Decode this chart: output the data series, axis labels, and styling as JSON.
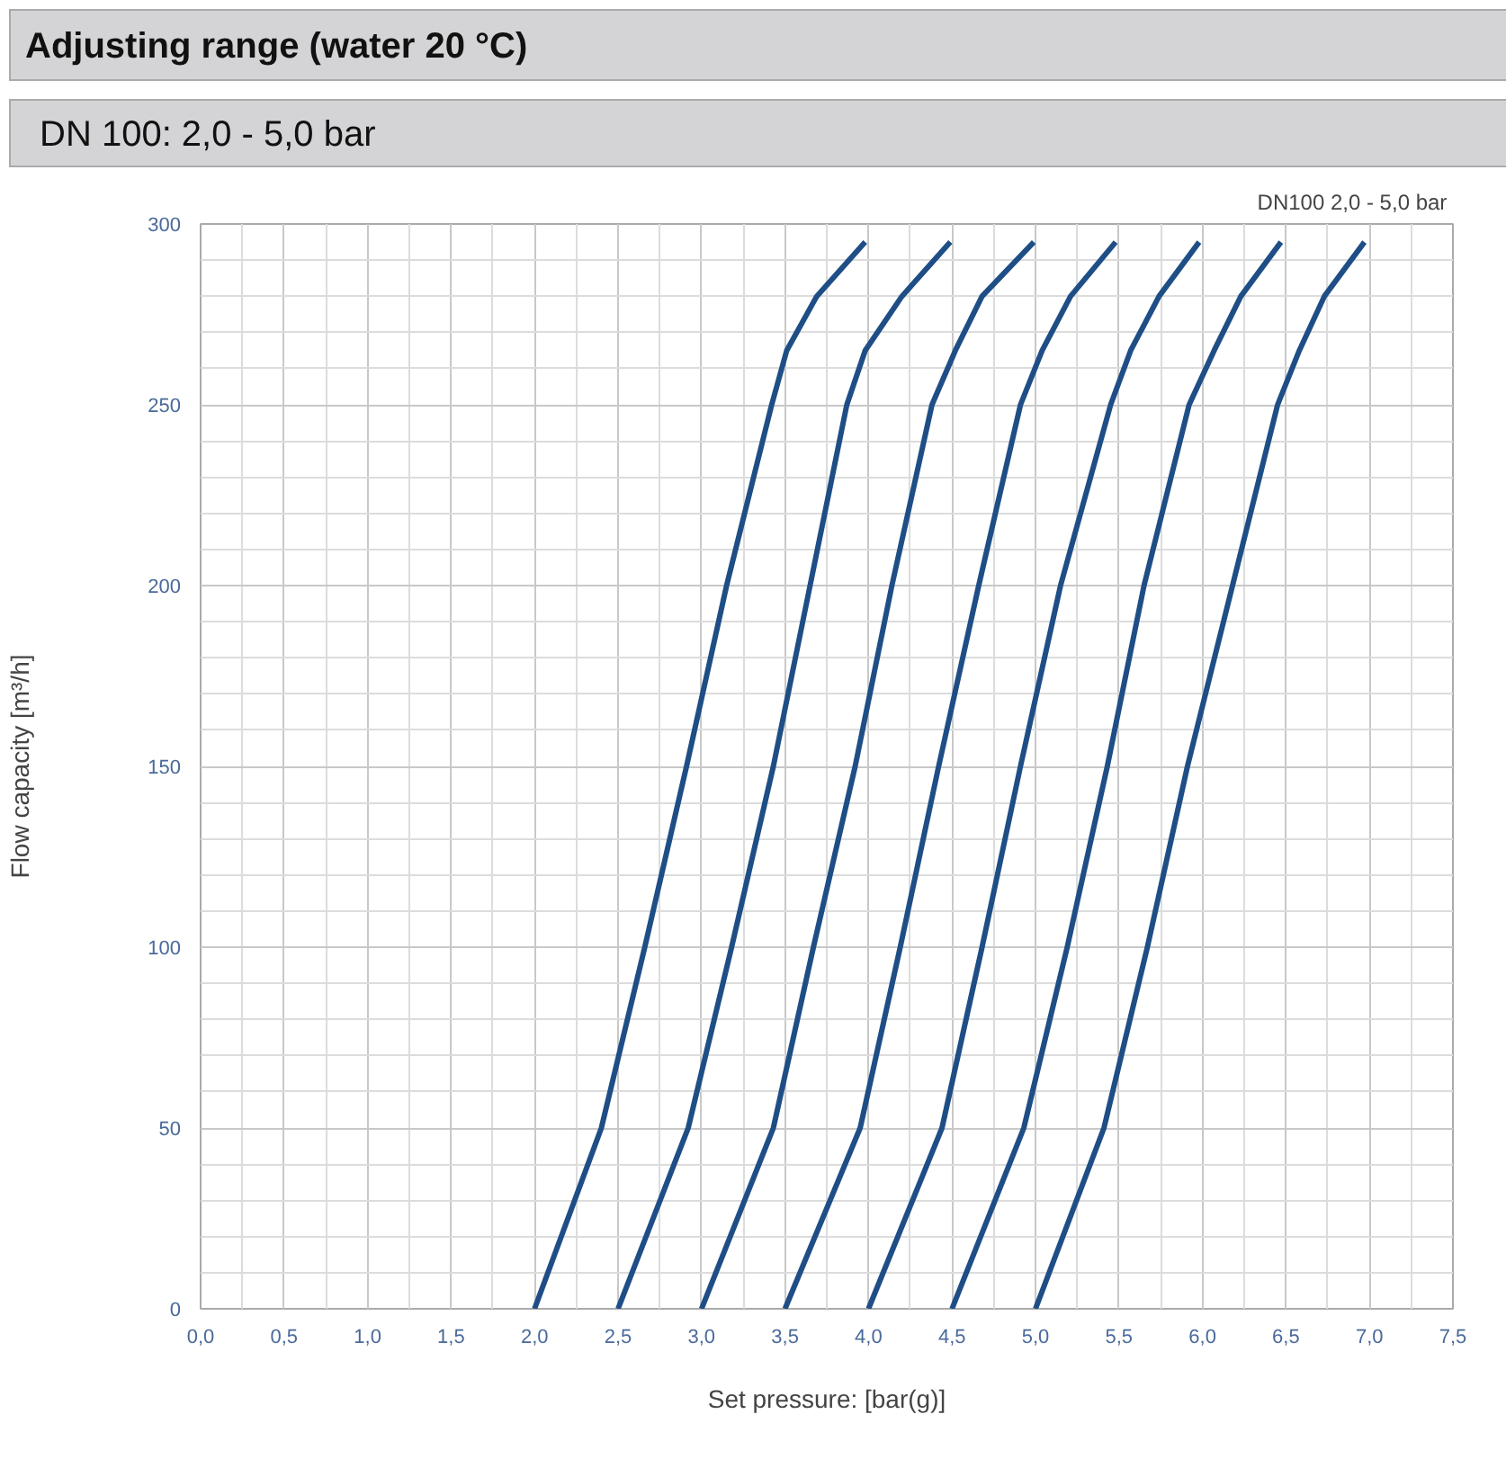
{
  "chart_data": {
    "type": "line",
    "title": "Adjusting range (water 20 °C)",
    "subtitle": "DN 100: 2,0 - 5,0 bar",
    "annotations": [
      "DN100  2,0 - 5,0 bar"
    ],
    "xlabel": "Set pressure: [bar(g)]",
    "ylabel": "Flow capacity [m³/h]",
    "xlim": [
      0,
      7.5
    ],
    "ylim": [
      0,
      300
    ],
    "xticks": [
      {
        "value": 0,
        "label": "0,0"
      },
      {
        "value": 0.5,
        "label": "0,5"
      },
      {
        "value": 1,
        "label": "1,0"
      },
      {
        "value": 1.5,
        "label": "1,5"
      },
      {
        "value": 2,
        "label": "2,0"
      },
      {
        "value": 2.5,
        "label": "2,5"
      },
      {
        "value": 3,
        "label": "3,0"
      },
      {
        "value": 3.5,
        "label": "3,5"
      },
      {
        "value": 4,
        "label": "4,0"
      },
      {
        "value": 4.5,
        "label": "4,5"
      },
      {
        "value": 5,
        "label": "5,0"
      },
      {
        "value": 5.5,
        "label": "5,5"
      },
      {
        "value": 6,
        "label": "6,0"
      },
      {
        "value": 6.5,
        "label": "6,5"
      },
      {
        "value": 7,
        "label": "7,0"
      },
      {
        "value": 7.5,
        "label": "7,5"
      }
    ],
    "yticks": [
      0,
      50,
      100,
      150,
      200,
      250,
      300
    ],
    "grid": true,
    "marker": "none",
    "line_style": "solid",
    "series": [
      {
        "color": "#1f4e86",
        "x": [
          2.0,
          2.4,
          2.66,
          2.91,
          3.15,
          3.42,
          3.51,
          3.69,
          3.98
        ],
        "values": [
          0,
          50,
          100,
          150,
          200,
          250,
          265,
          280,
          295
        ]
      },
      {
        "color": "#1f4e86",
        "x": [
          2.5,
          2.92,
          3.18,
          3.43,
          3.65,
          3.87,
          3.98,
          4.2,
          4.49
        ],
        "values": [
          0,
          50,
          100,
          150,
          200,
          250,
          265,
          280,
          295
        ]
      },
      {
        "color": "#1f4e86",
        "x": [
          3.0,
          3.43,
          3.67,
          3.92,
          4.14,
          4.38,
          4.52,
          4.68,
          4.99
        ],
        "values": [
          0,
          50,
          100,
          150,
          200,
          250,
          265,
          280,
          295
        ]
      },
      {
        "color": "#1f4e86",
        "x": [
          3.5,
          3.95,
          4.19,
          4.42,
          4.66,
          4.91,
          5.04,
          5.21,
          5.48
        ],
        "values": [
          0,
          50,
          100,
          150,
          200,
          250,
          265,
          280,
          295
        ]
      },
      {
        "color": "#1f4e86",
        "x": [
          4.0,
          4.44,
          4.68,
          4.91,
          5.15,
          5.45,
          5.57,
          5.74,
          5.98
        ],
        "values": [
          0,
          50,
          100,
          150,
          200,
          250,
          265,
          280,
          295
        ]
      },
      {
        "color": "#1f4e86",
        "x": [
          4.5,
          4.93,
          5.19,
          5.43,
          5.65,
          5.92,
          6.07,
          6.23,
          6.47
        ],
        "values": [
          0,
          50,
          100,
          150,
          200,
          250,
          265,
          280,
          295
        ]
      },
      {
        "color": "#1f4e86",
        "x": [
          5.0,
          5.41,
          5.67,
          5.91,
          6.18,
          6.45,
          6.58,
          6.73,
          6.97
        ],
        "values": [
          0,
          50,
          100,
          150,
          200,
          250,
          265,
          280,
          295
        ]
      }
    ]
  }
}
